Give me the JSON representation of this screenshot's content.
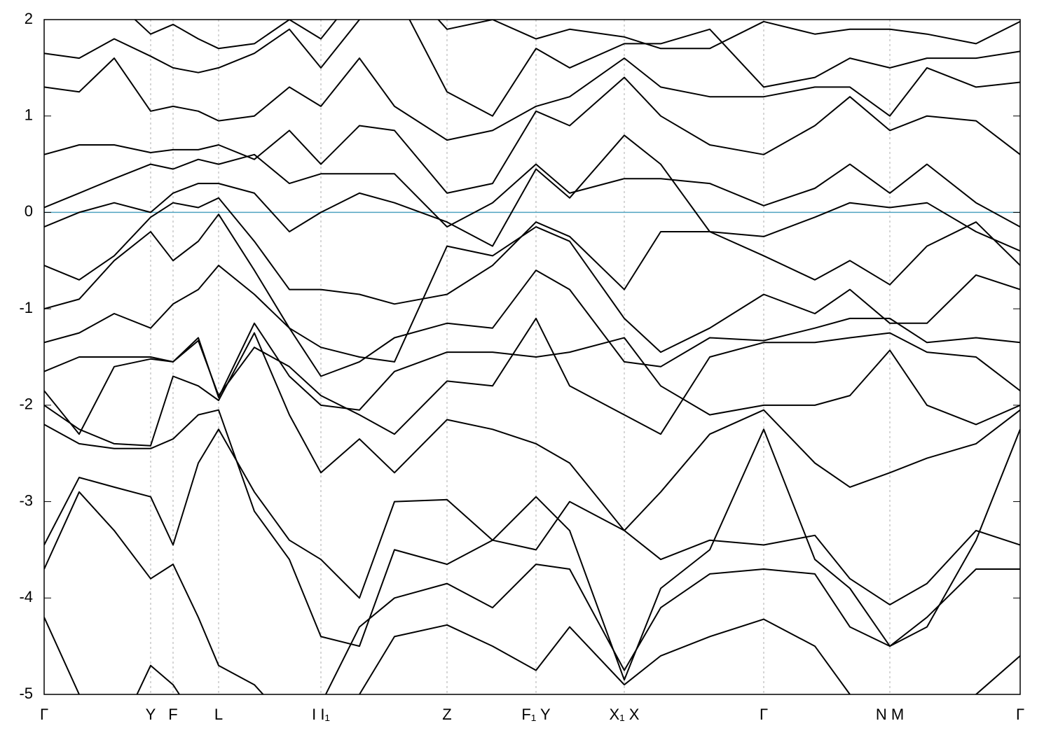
{
  "chart_data": {
    "type": "line",
    "x": [
      0,
      0.5,
      1,
      1.52,
      1.84,
      2.2,
      2.49,
      3,
      3.5,
      3.95,
      4.5,
      5,
      5.75,
      6.4,
      7.02,
      7.5,
      8.28,
      8.8,
      9.5,
      10.27,
      11,
      11.5,
      12.07,
      12.6,
      13.3,
      13.93
    ],
    "color": "#000000",
    "series": [
      {
        "values": [
          -4.2,
          -5.0,
          -5.5,
          -4.7,
          -4.9,
          -5.3,
          -5.5,
          -5.5,
          -5.5,
          -5.4,
          -5.0,
          -4.4,
          -4.28,
          -4.5,
          -4.75,
          -4.3,
          -4.9,
          -4.6,
          -4.4,
          -4.22,
          -4.5,
          -5.0,
          -5.5,
          -5.2,
          -5.0,
          -4.6
        ]
      },
      {
        "values": [
          -3.7,
          -2.9,
          -3.3,
          -3.8,
          -3.65,
          -4.2,
          -4.7,
          -4.9,
          -5.3,
          -5.1,
          -4.3,
          -4.0,
          -3.85,
          -4.1,
          -3.65,
          -3.7,
          -4.75,
          -4.1,
          -3.75,
          -3.7,
          -3.75,
          -4.3,
          -4.5,
          -4.2,
          -3.7,
          -3.7
        ]
      },
      {
        "values": [
          -3.45,
          -2.75,
          -2.85,
          -2.95,
          -3.45,
          -2.6,
          -2.25,
          -2.9,
          -3.4,
          -3.6,
          -4.0,
          -3.0,
          -2.98,
          -3.4,
          -3.5,
          -3.0,
          -3.3,
          -3.6,
          -3.4,
          -3.45,
          -3.35,
          -3.8,
          -4.07,
          -3.85,
          -3.3,
          -3.45
        ]
      },
      {
        "values": [
          -2.2,
          -2.4,
          -2.45,
          -2.45,
          -2.35,
          -2.1,
          -2.05,
          -3.1,
          -3.6,
          -4.4,
          -4.5,
          -3.5,
          -3.65,
          -3.4,
          -2.95,
          -3.3,
          -4.85,
          -3.9,
          -3.5,
          -2.25,
          -3.6,
          -3.9,
          -4.5,
          -4.3,
          -3.4,
          -2.25
        ]
      },
      {
        "values": [
          -2.0,
          -2.25,
          -2.4,
          -2.42,
          -1.7,
          -1.8,
          -1.95,
          -1.25,
          -2.1,
          -2.7,
          -2.35,
          -2.7,
          -2.15,
          -2.25,
          -2.4,
          -2.6,
          -3.3,
          -2.9,
          -2.3,
          -2.05,
          -2.6,
          -2.85,
          -2.7,
          -2.55,
          -2.4,
          -2.05
        ]
      },
      {
        "values": [
          -1.85,
          -2.3,
          -1.6,
          -1.52,
          -1.55,
          -1.3,
          -1.92,
          -1.15,
          -1.7,
          -2.0,
          -2.05,
          -1.65,
          -1.45,
          -1.45,
          -1.5,
          -1.45,
          -1.3,
          -1.8,
          -2.1,
          -2.0,
          -2.0,
          -1.9,
          -1.43,
          -2.0,
          -2.2,
          -2.0
        ]
      },
      {
        "values": [
          -1.65,
          -1.5,
          -1.5,
          -1.5,
          -1.55,
          -1.33,
          -1.9,
          -1.4,
          -1.6,
          -1.9,
          -2.1,
          -2.3,
          -1.75,
          -1.8,
          -1.1,
          -1.8,
          -2.1,
          -2.3,
          -1.5,
          -1.35,
          -1.35,
          -1.3,
          -1.25,
          -1.45,
          -1.5,
          -1.85
        ]
      },
      {
        "values": [
          -1.35,
          -1.25,
          -1.05,
          -1.2,
          -0.95,
          -0.8,
          -0.55,
          -0.85,
          -1.2,
          -1.7,
          -1.55,
          -1.3,
          -1.15,
          -1.2,
          -0.6,
          -0.8,
          -1.55,
          -1.6,
          -1.3,
          -1.33,
          -1.2,
          -1.1,
          -1.1,
          -1.35,
          -1.3,
          -1.35
        ]
      },
      {
        "values": [
          -1.0,
          -0.9,
          -0.5,
          -0.2,
          -0.5,
          -0.3,
          -0.02,
          -0.6,
          -1.2,
          -1.4,
          -1.5,
          -1.55,
          -0.35,
          -0.45,
          -0.15,
          -0.3,
          -1.1,
          -1.45,
          -1.2,
          -0.85,
          -1.05,
          -0.8,
          -1.15,
          -1.15,
          -0.65,
          -0.8
        ]
      },
      {
        "values": [
          -0.55,
          -0.7,
          -0.45,
          -0.05,
          0.1,
          0.05,
          0.15,
          -0.3,
          -0.8,
          -0.8,
          -0.85,
          -0.95,
          -0.85,
          -0.55,
          -0.1,
          -0.25,
          -0.8,
          -0.2,
          -0.2,
          -0.45,
          -0.7,
          -0.5,
          -0.75,
          -0.35,
          -0.1,
          -0.55
        ]
      },
      {
        "values": [
          -0.15,
          0.0,
          0.1,
          0.0,
          0.2,
          0.3,
          0.3,
          0.2,
          -0.2,
          0.0,
          0.2,
          0.1,
          -0.1,
          -0.35,
          0.45,
          0.15,
          0.8,
          0.5,
          -0.2,
          -0.25,
          -0.05,
          0.1,
          0.05,
          0.1,
          -0.2,
          -0.4
        ]
      },
      {
        "values": [
          0.05,
          0.2,
          0.35,
          0.5,
          0.45,
          0.55,
          0.5,
          0.6,
          0.3,
          0.4,
          0.4,
          0.4,
          -0.15,
          0.1,
          0.5,
          0.2,
          0.35,
          0.35,
          0.3,
          0.07,
          0.25,
          0.5,
          0.2,
          0.5,
          0.1,
          -0.15
        ]
      },
      {
        "values": [
          0.6,
          0.7,
          0.7,
          0.62,
          0.65,
          0.65,
          0.7,
          0.55,
          0.85,
          0.5,
          0.9,
          0.85,
          0.2,
          0.3,
          1.05,
          0.9,
          1.4,
          1.0,
          0.7,
          0.6,
          0.9,
          1.2,
          0.85,
          1.0,
          0.95,
          0.6
        ]
      },
      {
        "values": [
          1.3,
          1.25,
          1.6,
          1.05,
          1.1,
          1.05,
          0.95,
          1.0,
          1.3,
          1.1,
          1.6,
          1.1,
          0.75,
          0.85,
          1.1,
          1.2,
          1.6,
          1.3,
          1.2,
          1.2,
          1.3,
          1.3,
          1.0,
          1.5,
          1.3,
          1.35
        ]
      },
      {
        "values": [
          1.65,
          1.6,
          1.8,
          1.62,
          1.5,
          1.45,
          1.5,
          1.65,
          1.9,
          1.5,
          2.0,
          2.3,
          1.25,
          1.0,
          1.7,
          1.5,
          1.75,
          1.75,
          1.9,
          1.3,
          1.4,
          1.6,
          1.5,
          1.6,
          1.6,
          1.67
        ]
      },
      {
        "values": [
          2.0,
          2.2,
          2.2,
          1.85,
          1.95,
          1.8,
          1.7,
          1.75,
          2.0,
          1.8,
          2.3,
          2.5,
          1.9,
          2.0,
          1.8,
          1.9,
          1.82,
          1.7,
          1.7,
          1.98,
          1.85,
          1.9,
          1.9,
          1.85,
          1.75,
          1.98
        ]
      }
    ],
    "xlim": [
      0,
      13.93
    ],
    "xticks": [
      {
        "value": 0,
        "label": "Γ"
      },
      {
        "value": 1.52,
        "label": "Y"
      },
      {
        "value": 1.84,
        "label": "F"
      },
      {
        "value": 2.49,
        "label": "L"
      },
      {
        "value": 3.95,
        "label": "I  I₁"
      },
      {
        "value": 5.75,
        "label": "Z"
      },
      {
        "value": 7.02,
        "label": "F₁ Y"
      },
      {
        "value": 8.28,
        "label": "X₁ X"
      },
      {
        "value": 10.27,
        "label": "Γ"
      },
      {
        "value": 12.07,
        "label": "N M"
      },
      {
        "value": 13.93,
        "label": "Γ"
      }
    ],
    "ylim": [
      -5,
      2
    ],
    "yticks": [
      -5,
      -4,
      -3,
      -2,
      -1,
      0,
      1,
      2
    ],
    "hline": {
      "value": 0,
      "color": "#4fa3c0"
    },
    "grid_x": true
  }
}
